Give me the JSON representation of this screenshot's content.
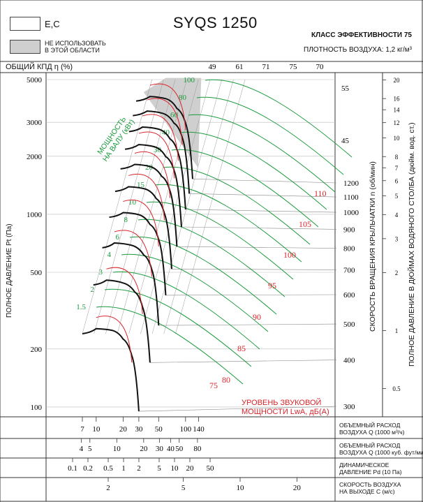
{
  "header": {
    "legend_ec": "E,C",
    "legend_gray": "НЕ ИСПОЛЬЗОВАТЬ\nВ ЭТОЙ ОБЛАСТИ",
    "title": "SYQS 1250",
    "efficiency_class": "КЛАСС ЭФФЕКТИВНОСТИ 75",
    "air_density": "ПЛОТНОСТЬ ВОЗДУХА: 1,2 кг/м³",
    "efficiency_axis_label": "ОБЩИЙ КПД η (%)"
  },
  "axes": {
    "left_label": "ПОЛНОЕ ДАВЛЕНИЕ Pt (Па)",
    "speed_label": "СКОРОСТЬ ВРАЩЕНИЯ КРЫЛЬЧАТКИ  n (об/мин)",
    "right_label": "ПОЛНОЕ ДАВЛЕНИЕ В ДЮЙМАХ ВОДЯНОГО СТОЛБА (дюйм. вод. ст.)",
    "power_label": "МОЩНОСТЬ\nНА ВАЛУ (кВт)",
    "sound_label": "УРОВЕНЬ ЗВУКОВОЙ\nМОЩНОСТИ LwA, дБ(А)"
  },
  "bottom_rows": [
    {
      "label": "ОБЪЕМНЫЙ РАСХОД\nВОЗДУХА Q (1000 м³/ч)",
      "ticks": [
        "7",
        "10",
        "20",
        "30",
        "50",
        "100",
        "140"
      ]
    },
    {
      "label": "ОБЪЕМНЫЙ РАСХОД\nВОЗДУХА Q (1000 куб. фут/мин)",
      "ticks": [
        "4",
        "5",
        "10",
        "20",
        "30",
        "40",
        "50",
        "80"
      ]
    },
    {
      "label": "ДИНАМИЧЕСКОЕ\nДАВЛЕНИЕ Pd (10 Па)",
      "ticks": [
        "0.1",
        "0.2",
        "0.5",
        "1",
        "2",
        "5",
        "10",
        "20",
        "50"
      ]
    },
    {
      "label": "СКОРОСТЬ ВОЗДУХА\nНА ВЫХОДЕ C (м/с)",
      "ticks": [
        "2",
        "5",
        "10",
        "20"
      ]
    }
  ],
  "colors": {
    "green": "#1a9a3c",
    "red": "#d8252b",
    "black": "#111111",
    "gray": "#cfcfcf"
  },
  "chart_data": {
    "type": "line",
    "title": "SYQS 1250",
    "y_left": {
      "label": "ПОЛНОЕ ДАВЛЕНИЕ Pt (Па)",
      "scale": "log",
      "ticks": [
        100,
        200,
        500,
        1000,
        2000,
        3000,
        5000
      ]
    },
    "y_right": {
      "label": "ПОЛНОЕ ДАВЛЕНИЕ В ДЮЙМАХ ВОДЯНОГО СТОЛБА",
      "scale": "log",
      "ticks": [
        0.5,
        1,
        2,
        3,
        4,
        5,
        6,
        7,
        8,
        10,
        12,
        14,
        16,
        20
      ]
    },
    "x": {
      "label": "ОБЪЕМНЫЙ РАСХОД ВОЗДУХА Q (1000 м³/ч)",
      "scale": "log",
      "ticks": [
        7,
        10,
        20,
        30,
        50,
        100,
        140
      ]
    },
    "speed_ticks_rpm": [
      300,
      400,
      500,
      600,
      700,
      800,
      900,
      1000,
      1100,
      1200
    ],
    "efficiency_ticks_pct": [
      49,
      61,
      71,
      75,
      70,
      55,
      45
    ],
    "power_labels_kw": [
      1.5,
      2,
      3,
      4,
      6,
      8,
      10,
      15,
      20,
      30,
      40,
      60,
      80,
      100
    ],
    "sound_labels_dba": [
      75,
      80,
      85,
      90,
      95,
      100,
      105,
      110
    ],
    "fan_curves": [
      {
        "rpm": 300,
        "points": [
          [
            7,
            240
          ],
          [
            10,
            255
          ],
          [
            15,
            250
          ],
          [
            20,
            225
          ],
          [
            25,
            185
          ],
          [
            30,
            95
          ]
        ]
      },
      {
        "rpm": 400,
        "points": [
          [
            9.3,
            430
          ],
          [
            13,
            455
          ],
          [
            20,
            440
          ],
          [
            27,
            395
          ],
          [
            33,
            330
          ],
          [
            40,
            170
          ]
        ]
      },
      {
        "rpm": 500,
        "points": [
          [
            11.7,
            670
          ],
          [
            16,
            710
          ],
          [
            25,
            690
          ],
          [
            34,
            615
          ],
          [
            42,
            515
          ],
          [
            50,
            265
          ]
        ]
      },
      {
        "rpm": 600,
        "points": [
          [
            14,
            965
          ],
          [
            20,
            1020
          ],
          [
            30,
            995
          ],
          [
            40,
            885
          ],
          [
            50,
            740
          ],
          [
            60,
            380
          ]
        ]
      },
      {
        "rpm": 700,
        "points": [
          [
            16.3,
            1315
          ],
          [
            23,
            1390
          ],
          [
            35,
            1355
          ],
          [
            47,
            1205
          ],
          [
            58,
            1010
          ],
          [
            70,
            520
          ]
        ]
      },
      {
        "rpm": 800,
        "points": [
          [
            18.7,
            1720
          ],
          [
            27,
            1815
          ],
          [
            40,
            1770
          ],
          [
            54,
            1575
          ],
          [
            67,
            1320
          ],
          [
            80,
            680
          ]
        ]
      },
      {
        "rpm": 900,
        "points": [
          [
            21,
            2175
          ],
          [
            30,
            2300
          ],
          [
            45,
            2240
          ],
          [
            60,
            1990
          ],
          [
            75,
            1670
          ],
          [
            90,
            860
          ]
        ]
      },
      {
        "rpm": 1000,
        "points": [
          [
            23.3,
            2685
          ],
          [
            33,
            2835
          ],
          [
            50,
            2765
          ],
          [
            67,
            2460
          ],
          [
            83,
            2060
          ],
          [
            100,
            1060
          ]
        ]
      },
      {
        "rpm": 1100,
        "points": [
          [
            25.7,
            3250
          ],
          [
            37,
            3430
          ],
          [
            55,
            3345
          ],
          [
            74,
            2975
          ],
          [
            92,
            2495
          ],
          [
            110,
            1280
          ]
        ]
      },
      {
        "rpm": 1200,
        "points": [
          [
            28,
            3870
          ],
          [
            40,
            4085
          ],
          [
            60,
            3980
          ],
          [
            80,
            3540
          ],
          [
            100,
            2970
          ],
          [
            120,
            1525
          ]
        ]
      }
    ]
  }
}
